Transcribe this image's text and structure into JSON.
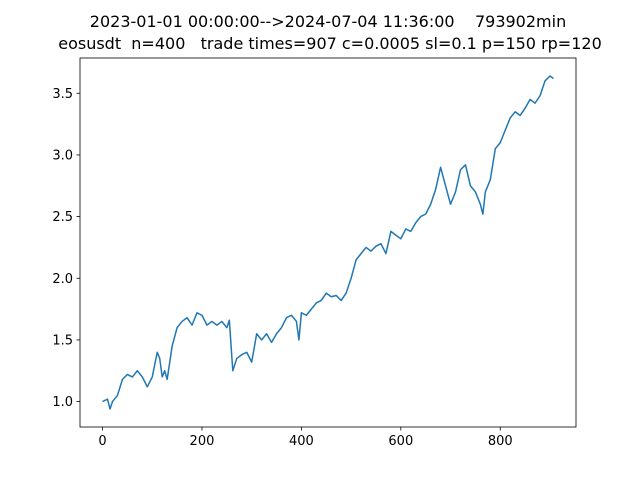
{
  "chart_data": {
    "type": "line",
    "title": [
      "2023-01-01 00:00:00-->2024-07-04 11:36:00    793902min",
      "eosusdt  n=400   trade times=907 c=0.0005 sl=0.1 p=150 rp=120"
    ],
    "color": "#1f77b4",
    "x": [
      0,
      10,
      15,
      20,
      30,
      40,
      50,
      60,
      70,
      80,
      90,
      100,
      105,
      110,
      115,
      120,
      125,
      130,
      140,
      150,
      160,
      170,
      180,
      190,
      200,
      210,
      220,
      230,
      240,
      250,
      255,
      262,
      270,
      280,
      290,
      300,
      310,
      320,
      330,
      340,
      350,
      360,
      370,
      380,
      390,
      395,
      400,
      410,
      420,
      430,
      440,
      450,
      460,
      470,
      480,
      490,
      500,
      510,
      520,
      530,
      540,
      550,
      560,
      570,
      580,
      590,
      600,
      610,
      620,
      630,
      640,
      650,
      660,
      670,
      680,
      690,
      700,
      710,
      720,
      730,
      740,
      750,
      760,
      765,
      770,
      780,
      790,
      800,
      810,
      820,
      830,
      840,
      850,
      860,
      870,
      880,
      890,
      900,
      907
    ],
    "values": [
      1.0,
      1.02,
      0.94,
      1.0,
      1.05,
      1.18,
      1.22,
      1.2,
      1.25,
      1.2,
      1.12,
      1.2,
      1.3,
      1.4,
      1.35,
      1.2,
      1.25,
      1.18,
      1.45,
      1.6,
      1.65,
      1.68,
      1.62,
      1.72,
      1.7,
      1.62,
      1.65,
      1.62,
      1.65,
      1.6,
      1.66,
      1.25,
      1.35,
      1.38,
      1.4,
      1.32,
      1.55,
      1.5,
      1.55,
      1.48,
      1.55,
      1.6,
      1.68,
      1.7,
      1.65,
      1.5,
      1.72,
      1.7,
      1.75,
      1.8,
      1.82,
      1.88,
      1.85,
      1.86,
      1.82,
      1.88,
      2.0,
      2.15,
      2.2,
      2.25,
      2.22,
      2.26,
      2.28,
      2.2,
      2.38,
      2.35,
      2.32,
      2.4,
      2.38,
      2.45,
      2.5,
      2.52,
      2.6,
      2.72,
      2.9,
      2.75,
      2.6,
      2.7,
      2.88,
      2.92,
      2.75,
      2.7,
      2.6,
      2.52,
      2.7,
      2.8,
      3.05,
      3.1,
      3.2,
      3.3,
      3.35,
      3.32,
      3.38,
      3.45,
      3.42,
      3.48,
      3.6,
      3.64,
      3.62
    ],
    "xlim": [
      -45.35,
      952.35
    ],
    "ylim": [
      0.794,
      3.786
    ],
    "xticks": [
      0,
      200,
      400,
      600,
      800
    ],
    "yticks": [
      {
        "value": 1.0,
        "label": "1.0"
      },
      {
        "value": 1.5,
        "label": "1.5"
      },
      {
        "value": 2.0,
        "label": "2.0"
      },
      {
        "value": 2.5,
        "label": "2.5"
      },
      {
        "value": 3.0,
        "label": "3.0"
      },
      {
        "value": 3.5,
        "label": "3.5"
      }
    ]
  }
}
